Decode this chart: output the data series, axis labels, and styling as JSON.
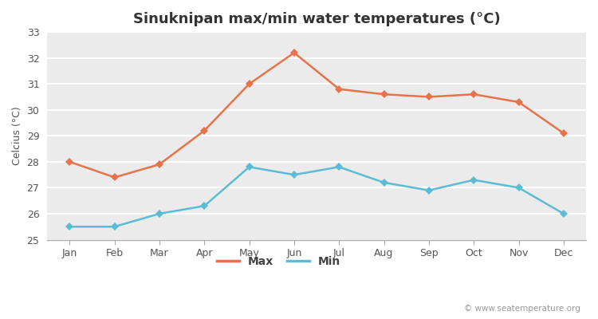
{
  "title": "Sinuknipan max/min water temperatures (°C)",
  "ylabel": "Celcius (°C)",
  "months": [
    "Jan",
    "Feb",
    "Mar",
    "Apr",
    "May",
    "Jun",
    "Jul",
    "Aug",
    "Sep",
    "Oct",
    "Nov",
    "Dec"
  ],
  "max_temps": [
    28.0,
    27.4,
    27.9,
    29.2,
    31.0,
    32.2,
    30.8,
    30.6,
    30.5,
    30.6,
    30.3,
    29.1
  ],
  "min_temps": [
    25.5,
    25.5,
    26.0,
    26.3,
    27.8,
    27.5,
    27.8,
    27.2,
    26.9,
    27.3,
    27.0,
    26.0
  ],
  "max_color": "#e8724a",
  "min_color": "#5bbcd6",
  "fig_bg_color": "#ffffff",
  "plot_bg_color": "#ebebeb",
  "grid_color": "#ffffff",
  "spine_color": "#aaaaaa",
  "ylim": [
    25,
    33
  ],
  "yticks": [
    25,
    26,
    27,
    28,
    29,
    30,
    31,
    32,
    33
  ],
  "legend_labels": [
    "Max",
    "Min"
  ],
  "watermark": "© www.seatemperature.org",
  "title_fontsize": 13,
  "label_fontsize": 9,
  "tick_fontsize": 9,
  "legend_fontsize": 10,
  "marker": "D",
  "linewidth": 1.8,
  "markersize": 5
}
